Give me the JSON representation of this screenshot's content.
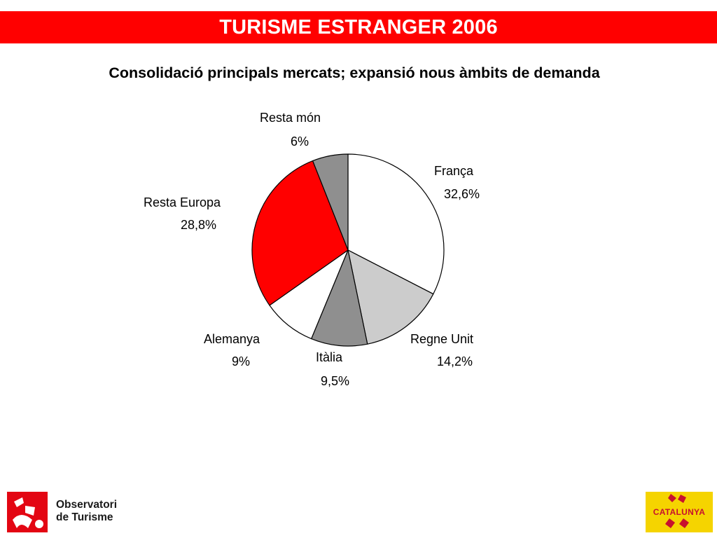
{
  "header": {
    "title": "TURISME ESTRANGER 2006",
    "subtitle": "Consolidació principals mercats; expansió nous àmbits de demanda"
  },
  "colors": {
    "banner": "#ff0000",
    "accent_red": "#ff0000",
    "logo_yellow": "#f5d400",
    "logo_red": "#c8102e"
  },
  "chart_data": {
    "type": "pie",
    "title": "",
    "start_angle_deg": 0,
    "direction": "clockwise",
    "slices": [
      {
        "name": "França",
        "value": 32.6,
        "label": "32,6%",
        "color": "#ffffff"
      },
      {
        "name": "Regne Unit",
        "value": 14.2,
        "label": "14,2%",
        "color": "#cccccc"
      },
      {
        "name": "Itàlia",
        "value": 9.5,
        "label": "9,5%",
        "color": "#8f8f8f"
      },
      {
        "name": "Alemanya",
        "value": 9,
        "label": "9%",
        "color": "#ffffff"
      },
      {
        "name": "Resta Europa",
        "value": 28.8,
        "label": "28,8%",
        "color": "#ff0000"
      },
      {
        "name": "Resta món",
        "value": 6,
        "label": "6%",
        "color": "#8f8f8f"
      }
    ]
  },
  "footer": {
    "left_logo": {
      "line1": "Observatori",
      "line2": "de Turisme",
      "icon": "observatori-logo-icon"
    },
    "right_logo": {
      "text": "CATALUNYA",
      "icon": "catalunya-logo-icon"
    }
  }
}
